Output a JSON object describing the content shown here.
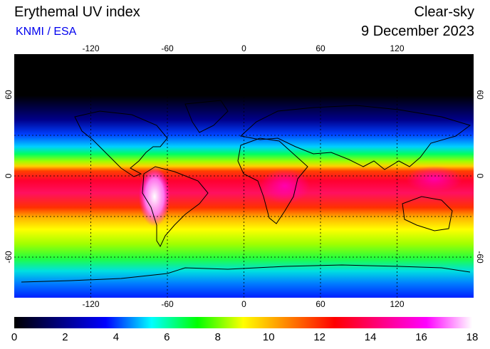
{
  "header": {
    "title": "Erythemal UV index",
    "credit": "KNMI / ESA",
    "condition": "Clear-sky",
    "date": "9 December 2023"
  },
  "map": {
    "lon_range": [
      -180,
      180
    ],
    "lat_range": [
      -90,
      90
    ],
    "grid_lon": [
      -120,
      -60,
      0,
      60,
      120
    ],
    "grid_lat": [
      -60,
      -30,
      0,
      30,
      60
    ],
    "lon_ticks": [
      "-120",
      "-60",
      "0",
      "60",
      "120"
    ],
    "lat_ticks": [
      "60",
      "0",
      "-60"
    ],
    "lat_tick_values": [
      60,
      0,
      -60
    ]
  },
  "colorbar": {
    "min": 0,
    "max": 18,
    "tick_values": [
      0,
      2,
      4,
      6,
      8,
      10,
      12,
      14,
      16,
      18
    ],
    "tick_labels": [
      "0",
      "2",
      "4",
      "6",
      "8",
      "10",
      "12",
      "14",
      "16",
      "18"
    ],
    "colors": [
      "#000000",
      "#000080",
      "#0000ff",
      "#00ffff",
      "#00ff00",
      "#ffff00",
      "#ff8000",
      "#ff0000",
      "#ff0080",
      "#ff00ff",
      "#ffffff"
    ]
  },
  "colors": {
    "credit": "#0000ee"
  }
}
